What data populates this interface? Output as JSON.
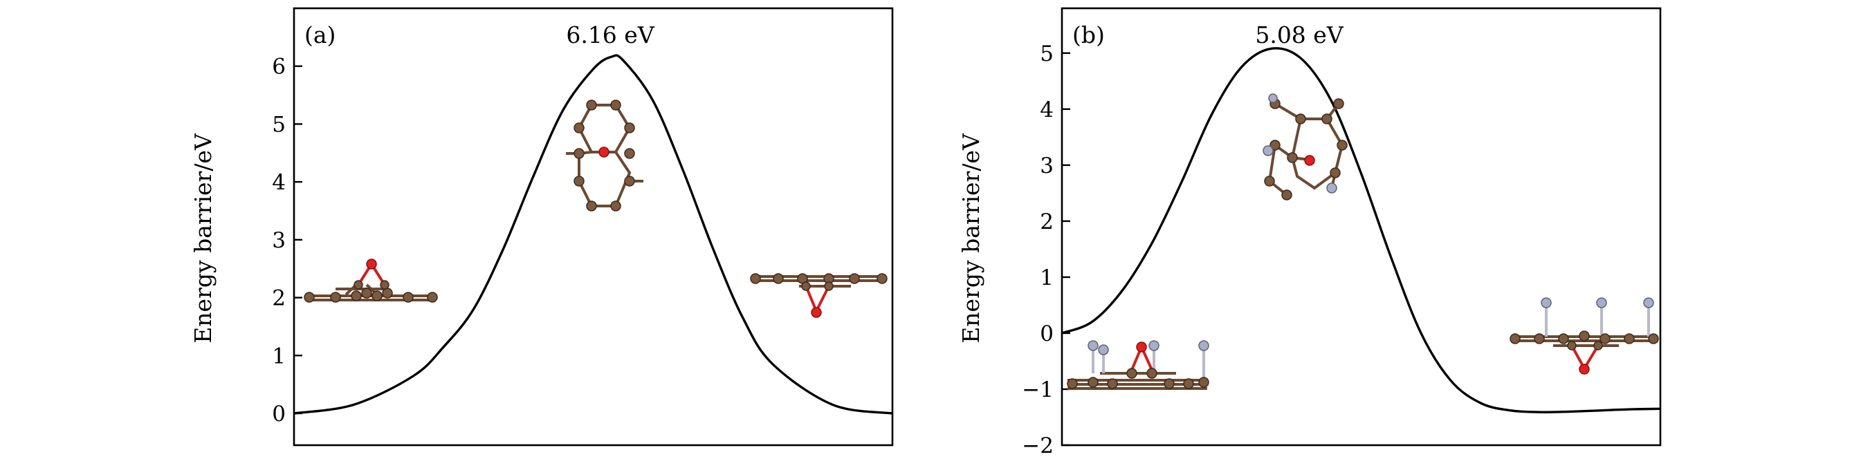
{
  "chart_data": [
    {
      "type": "line",
      "panel_label": "(a)",
      "peak_label": "6.16 eV",
      "ylabel": "Energy barrier/eV",
      "xlabel": "",
      "ylim": [
        -0.55,
        7.0
      ],
      "yticks": [
        0,
        1,
        2,
        3,
        4,
        5,
        6
      ],
      "ytick_labels": [
        "0",
        "1",
        "2",
        "3",
        "4",
        "5",
        "6"
      ],
      "series": [
        {
          "name": "energy profile",
          "x": [
            0.0,
            0.1,
            0.2,
            0.25,
            0.3,
            0.35,
            0.4,
            0.45,
            0.5,
            0.53,
            0.55,
            0.6,
            0.65,
            0.7,
            0.75,
            0.8,
            0.9,
            1.0
          ],
          "values": [
            0.0,
            0.15,
            0.65,
            1.15,
            1.8,
            2.85,
            4.1,
            5.25,
            5.95,
            6.16,
            6.1,
            5.4,
            4.2,
            2.85,
            1.65,
            0.85,
            0.15,
            0.0
          ]
        }
      ]
    },
    {
      "type": "line",
      "panel_label": "(b)",
      "peak_label": "5.08 eV",
      "ylabel": "Energy barrier/eV",
      "xlabel": "",
      "ylim": [
        -2.0,
        5.8
      ],
      "yticks": [
        -2,
        -1,
        0,
        1,
        2,
        3,
        4,
        5
      ],
      "ytick_labels": [
        "−2",
        "−1",
        "0",
        "1",
        "2",
        "3",
        "4",
        "5"
      ],
      "series": [
        {
          "name": "energy profile",
          "x": [
            0.0,
            0.05,
            0.1,
            0.15,
            0.2,
            0.25,
            0.3,
            0.35,
            0.4,
            0.45,
            0.5,
            0.55,
            0.6,
            0.65,
            0.7,
            0.75,
            0.8,
            0.85,
            0.9,
            0.95,
            1.0
          ],
          "values": [
            0.0,
            0.2,
            0.75,
            1.6,
            2.7,
            3.9,
            4.75,
            5.08,
            4.9,
            4.15,
            2.85,
            1.35,
            0.0,
            -0.85,
            -1.25,
            -1.38,
            -1.41,
            -1.4,
            -1.38,
            -1.36,
            -1.35
          ]
        }
      ]
    }
  ]
}
